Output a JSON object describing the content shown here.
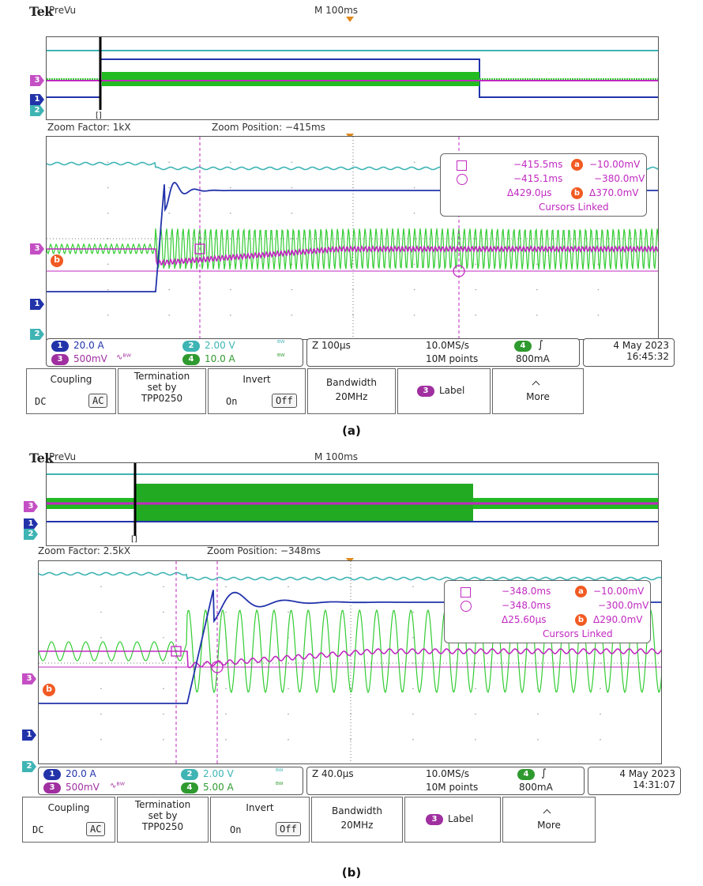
{
  "panels": [
    {
      "id": "a",
      "logo": "Tek",
      "prevu": "PreVu",
      "timebase": "M 100ms",
      "bracket": "[]",
      "zoom_factor": "Zoom Factor: 1kX",
      "zoom_position": "Zoom Position: −415ms",
      "cursor": {
        "sq_time": "−415.5ms",
        "a_value": "−10.00mV",
        "circ_time": "−415.1ms",
        "circ_value": "−380.0mV",
        "delta_time": "Δ429.0µs",
        "delta_value": "Δ370.0mV",
        "linked": "Cursors Linked"
      },
      "channels": {
        "ch1": "20.0 A",
        "ch2": "2.00 V",
        "ch3": "500mV",
        "ch4": "10.0 A"
      },
      "acq": {
        "horiz": "Z 100µs",
        "rate": "10.0MS/s",
        "points": "10M points",
        "trig_level": "800mA"
      },
      "date": "4 May 2023",
      "time": "16:45:32"
    },
    {
      "id": "b",
      "logo": "Tek",
      "prevu": "PreVu",
      "timebase": "M 100ms",
      "bracket": "[]",
      "zoom_factor": "Zoom Factor: 2.5kX",
      "zoom_position": "Zoom Position: −348ms",
      "cursor": {
        "sq_time": "−348.0ms",
        "a_value": "−10.00mV",
        "circ_time": "−348.0ms",
        "circ_value": "−300.0mV",
        "delta_time": "Δ25.60µs",
        "delta_value": "Δ290.0mV",
        "linked": "Cursors Linked"
      },
      "channels": {
        "ch1": "20.0 A",
        "ch2": "2.00 V",
        "ch3": "500mV",
        "ch4": "5.00 A"
      },
      "acq": {
        "horiz": "Z 40.0µs",
        "rate": "10.0MS/s",
        "points": "10M points",
        "trig_level": "800mA"
      },
      "date": "4 May 2023",
      "time": "14:31:07"
    }
  ],
  "channel_markers": {
    "c1": "1",
    "c2": "2",
    "c3": "3",
    "c4": "4",
    "cursor_a": "a",
    "cursor_b": "b"
  },
  "menu": {
    "coupling_label": "Coupling",
    "coupling_dc": "DC",
    "coupling_ac": "AC",
    "termination_label": "Termination set by TPP0250",
    "invert_label": "Invert",
    "invert_on": "On",
    "invert_off": "Off",
    "bandwidth_label": "Bandwidth",
    "bandwidth_value": "20MHz",
    "label_button": "Label",
    "more_label": "More"
  },
  "captions": [
    "(a)",
    "(b)"
  ],
  "colors": {
    "ch1": "#2233aa",
    "ch2": "#3fb4b4",
    "ch3": "#c129c1",
    "ch4": "#33cc33",
    "trigger": "#e08a1c",
    "cursor": "#c129c1"
  }
}
